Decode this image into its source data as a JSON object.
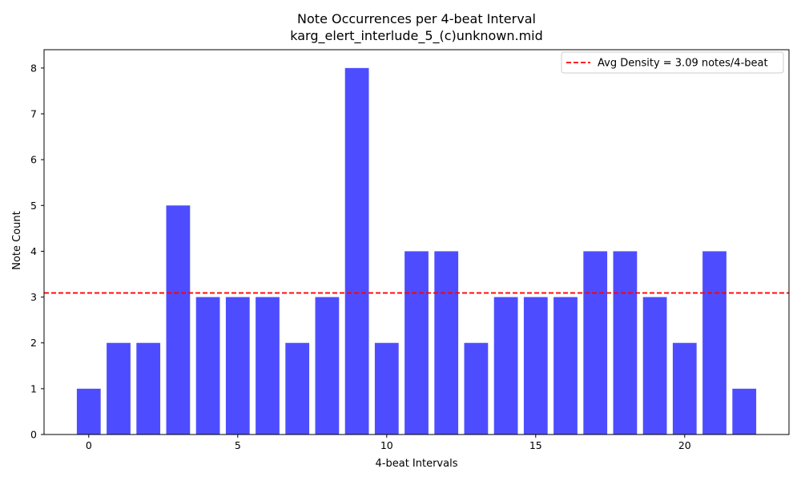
{
  "chart_data": {
    "type": "bar",
    "title": "Note Occurrences per 4-beat Interval",
    "subtitle": "karg_elert_interlude_5_(c)unknown.mid",
    "xlabel": "4-beat Intervals",
    "ylabel": "Note Count",
    "x": [
      0,
      1,
      2,
      3,
      4,
      5,
      6,
      7,
      8,
      9,
      10,
      11,
      12,
      13,
      14,
      15,
      16,
      17,
      18,
      19,
      20,
      21,
      22
    ],
    "values": [
      1,
      2,
      2,
      5,
      3,
      3,
      3,
      2,
      3,
      8,
      2,
      4,
      4,
      2,
      3,
      3,
      3,
      4,
      4,
      3,
      2,
      4,
      1
    ],
    "xlim": [
      -1.5,
      23.5
    ],
    "ylim": [
      0,
      8.4
    ],
    "xticks": [
      0,
      5,
      10,
      15,
      20
    ],
    "yticks": [
      0,
      1,
      2,
      3,
      4,
      5,
      6,
      7,
      8
    ],
    "bar_color": "#4d4dff",
    "average": {
      "value": 3.09,
      "label": "Avg Density = 3.09 notes/4-beat",
      "color": "#ff0000",
      "style": "dashed"
    },
    "legend_position": "top-right",
    "grid": false
  }
}
